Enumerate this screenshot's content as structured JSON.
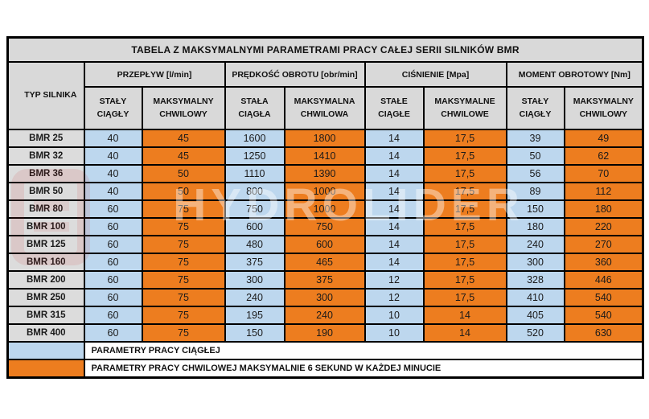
{
  "chart_data": {
    "type": "table",
    "title": "TABELA Z MAKSYMALNYMI PARAMETRAMI PRACY CAŁEJ SERII SILNIKÓW BMR",
    "columns": {
      "typ_label": "TYP SILNIKA",
      "groups": [
        {
          "label": "PRZEPŁYW [l/min]",
          "sub": [
            "STAŁY CIĄGŁY",
            "MAKSYMALNY CHWILOWY"
          ]
        },
        {
          "label": "PRĘDKOŚĆ OBROTU [obr/min]",
          "sub": [
            "STAŁA CIĄGŁA",
            "MAKSYMALNA CHWILOWA"
          ]
        },
        {
          "label": "CIŚNIENIE [Mpa]",
          "sub": [
            "STAŁE CIĄGŁE",
            "MAKSYMALNE CHWILOWE"
          ]
        },
        {
          "label": "MOMENT OBROTOWY [Nm]",
          "sub": [
            "STAŁY CIĄGŁY",
            "MAKSYMALNY CHWILOWY"
          ]
        }
      ]
    },
    "rows": [
      {
        "typ": "BMR 25",
        "values": [
          "40",
          "45",
          "1600",
          "1800",
          "14",
          "17,5",
          "39",
          "49"
        ]
      },
      {
        "typ": "BMR 32",
        "values": [
          "40",
          "45",
          "1250",
          "1410",
          "14",
          "17,5",
          "50",
          "62"
        ]
      },
      {
        "typ": "BMR 36",
        "values": [
          "40",
          "50",
          "1110",
          "1390",
          "14",
          "17,5",
          "56",
          "70"
        ]
      },
      {
        "typ": "BMR 50",
        "values": [
          "40",
          "50",
          "800",
          "1000",
          "14",
          "17,5",
          "89",
          "112"
        ]
      },
      {
        "typ": "BMR 80",
        "values": [
          "60",
          "75",
          "750",
          "1000",
          "14",
          "17,5",
          "150",
          "180"
        ]
      },
      {
        "typ": "BMR 100",
        "values": [
          "60",
          "75",
          "600",
          "750",
          "14",
          "17,5",
          "180",
          "220"
        ]
      },
      {
        "typ": "BMR 125",
        "values": [
          "60",
          "75",
          "480",
          "600",
          "14",
          "17,5",
          "240",
          "270"
        ]
      },
      {
        "typ": "BMR 160",
        "values": [
          "60",
          "75",
          "375",
          "465",
          "14",
          "17,5",
          "300",
          "360"
        ]
      },
      {
        "typ": "BMR 200",
        "values": [
          "60",
          "75",
          "300",
          "375",
          "12",
          "17,5",
          "328",
          "446"
        ]
      },
      {
        "typ": "BMR 250",
        "values": [
          "60",
          "75",
          "240",
          "300",
          "12",
          "17,5",
          "410",
          "540"
        ]
      },
      {
        "typ": "BMR 315",
        "values": [
          "60",
          "75",
          "195",
          "240",
          "10",
          "14",
          "405",
          "540"
        ]
      },
      {
        "typ": "BMR 400",
        "values": [
          "60",
          "75",
          "150",
          "190",
          "10",
          "14",
          "520",
          "630"
        ]
      }
    ],
    "legend": [
      {
        "color": "continuous",
        "label": "PARAMETRY PRACY CIĄGŁEJ"
      },
      {
        "color": "momentary",
        "label": "PARAMETRY PRACY CHWILOWEJ MAKSYMALNIE 6 SEKUND W KAŻDEJ MINUCIE"
      }
    ]
  },
  "watermark": {
    "text": "HYDROLIDER"
  },
  "colors": {
    "continuous": "#BDD7EE",
    "momentary": "#ED7D1F",
    "header": "#D9D9D9",
    "row_label": "#DCDCDC",
    "border": "#000000"
  }
}
